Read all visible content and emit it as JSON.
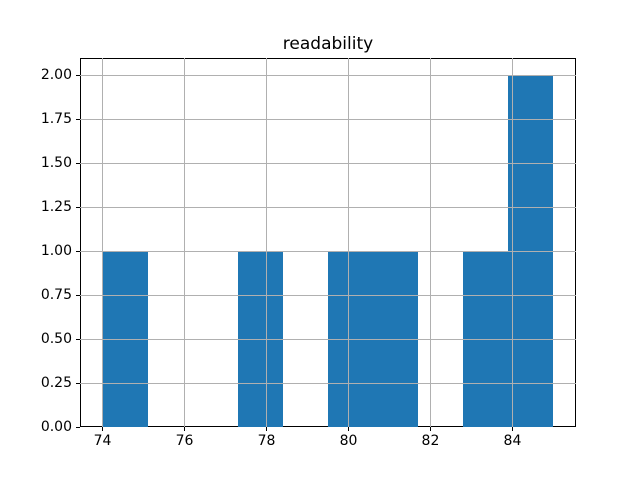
{
  "chart_data": {
    "type": "bar",
    "subtype": "histogram",
    "title": "readability",
    "xlabel": "",
    "ylabel": "",
    "bin_edges": [
      74.0,
      75.1,
      76.2,
      77.3,
      78.4,
      79.5,
      80.6,
      81.7,
      82.8,
      83.9,
      85.0
    ],
    "counts": [
      1,
      0,
      0,
      1,
      0,
      1,
      1,
      0,
      1,
      2
    ],
    "xlim": [
      73.45,
      85.55
    ],
    "ylim": [
      0,
      2.1
    ],
    "xticks": [
      74,
      76,
      78,
      80,
      82,
      84
    ],
    "xtick_labels": [
      "74",
      "76",
      "78",
      "80",
      "82",
      "84"
    ],
    "yticks": [
      0,
      0.25,
      0.5,
      0.75,
      1.0,
      1.25,
      1.5,
      1.75,
      2.0
    ],
    "ytick_labels": [
      "0.00",
      "0.25",
      "0.50",
      "0.75",
      "1.00",
      "1.25",
      "1.50",
      "1.75",
      "2.00"
    ],
    "grid": true,
    "grid_over_bars": true,
    "legend": false,
    "bar_color": "#1f77b4",
    "grid_color": "#b0b0b0",
    "axis_color": "#000000",
    "background_color": "#ffffff"
  }
}
